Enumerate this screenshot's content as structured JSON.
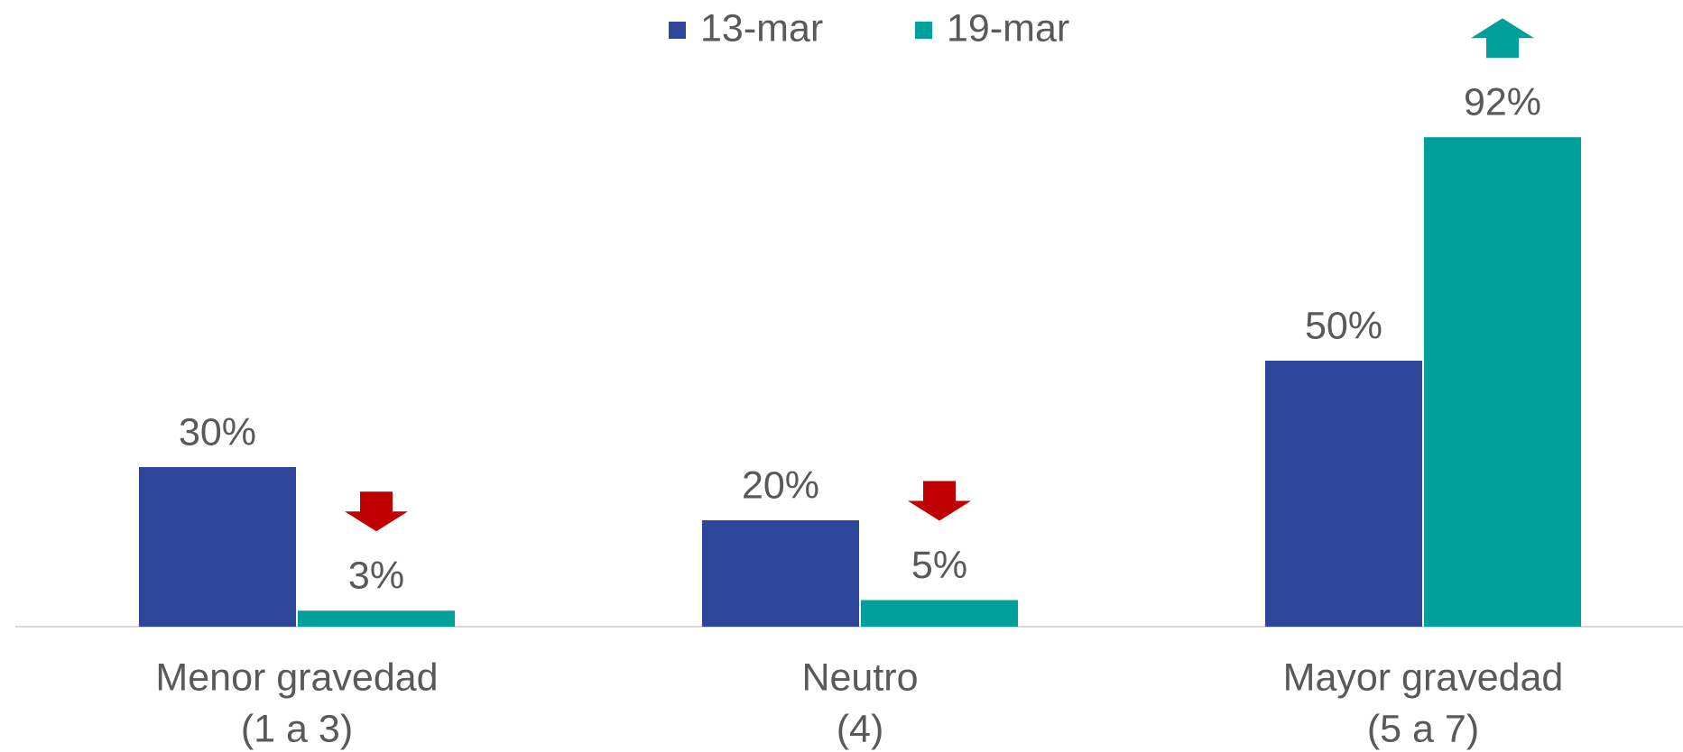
{
  "chart_data": {
    "type": "bar",
    "categories": [
      [
        "Menor gravedad",
        "(1 a 3)"
      ],
      [
        "Neutro",
        "(4)"
      ],
      [
        "Mayor gravedad",
        "(5 a 7)"
      ]
    ],
    "series": [
      {
        "name": "13-mar",
        "color": "#2e4699",
        "values": [
          30,
          20,
          50
        ],
        "value_labels": [
          "30%",
          "20%",
          "50%"
        ]
      },
      {
        "name": "19-mar",
        "color": "#00a09a",
        "values": [
          3,
          5,
          92
        ],
        "value_labels": [
          "3%",
          "5%",
          "92%"
        ]
      }
    ],
    "arrows": [
      {
        "direction": "down",
        "color": "#c00000"
      },
      {
        "direction": "down",
        "color": "#c00000"
      },
      {
        "direction": "up",
        "color": "#00a09a"
      }
    ],
    "ylim": [
      0,
      100
    ],
    "legend": "top"
  }
}
